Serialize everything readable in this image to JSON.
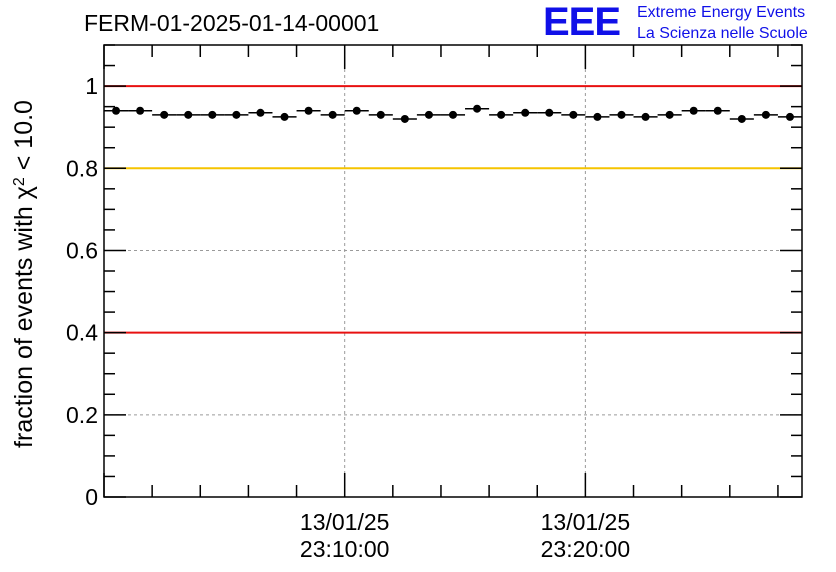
{
  "title": "FERM-01-2025-01-14-00001",
  "logo": {
    "mark": "EEE",
    "line1": "Extreme Energy Events",
    "line2": "La Scienza nelle Scuole",
    "color": "#1010e8"
  },
  "chart_data": {
    "type": "scatter",
    "title": "FERM-01-2025-01-14-00001",
    "xlabel": "",
    "ylabel_text": "fraction of events with χ",
    "ylabel_sup": "2",
    "ylabel_tail": " < 10.0",
    "ylim": [
      0,
      1.1
    ],
    "xlim_min": [
      0,
      29
    ],
    "yticks": [
      0,
      0.2,
      0.4,
      0.6,
      0.8,
      1.0
    ],
    "ytick_labels": [
      "0",
      "0.2",
      "0.4",
      "0.6",
      "0.8",
      "1"
    ],
    "xticks_min": [
      10,
      20
    ],
    "xtick_labels": [
      {
        "date": "13/01/25",
        "time": "23:10:00"
      },
      {
        "date": "13/01/25",
        "time": "23:20:00"
      }
    ],
    "grid": true,
    "reference_lines": [
      {
        "y": 1.0,
        "color": "#e81010"
      },
      {
        "y": 0.8,
        "color": "#f5c400"
      },
      {
        "y": 0.4,
        "color": "#e81010"
      }
    ],
    "bin_width_min": 1,
    "x_min": [
      0.5,
      1.5,
      2.5,
      3.5,
      4.5,
      5.5,
      6.5,
      7.5,
      8.5,
      9.5,
      10.5,
      11.5,
      12.5,
      13.5,
      14.5,
      15.5,
      16.5,
      17.5,
      18.5,
      19.5,
      20.5,
      21.5,
      22.5,
      23.5,
      24.5,
      25.5,
      26.5,
      27.5,
      28.5
    ],
    "values": [
      0.94,
      0.94,
      0.93,
      0.93,
      0.93,
      0.93,
      0.935,
      0.925,
      0.94,
      0.93,
      0.94,
      0.93,
      0.92,
      0.93,
      0.93,
      0.945,
      0.93,
      0.935,
      0.935,
      0.93,
      0.925,
      0.93,
      0.925,
      0.93,
      0.94,
      0.94,
      0.92,
      0.93,
      0.925
    ]
  }
}
